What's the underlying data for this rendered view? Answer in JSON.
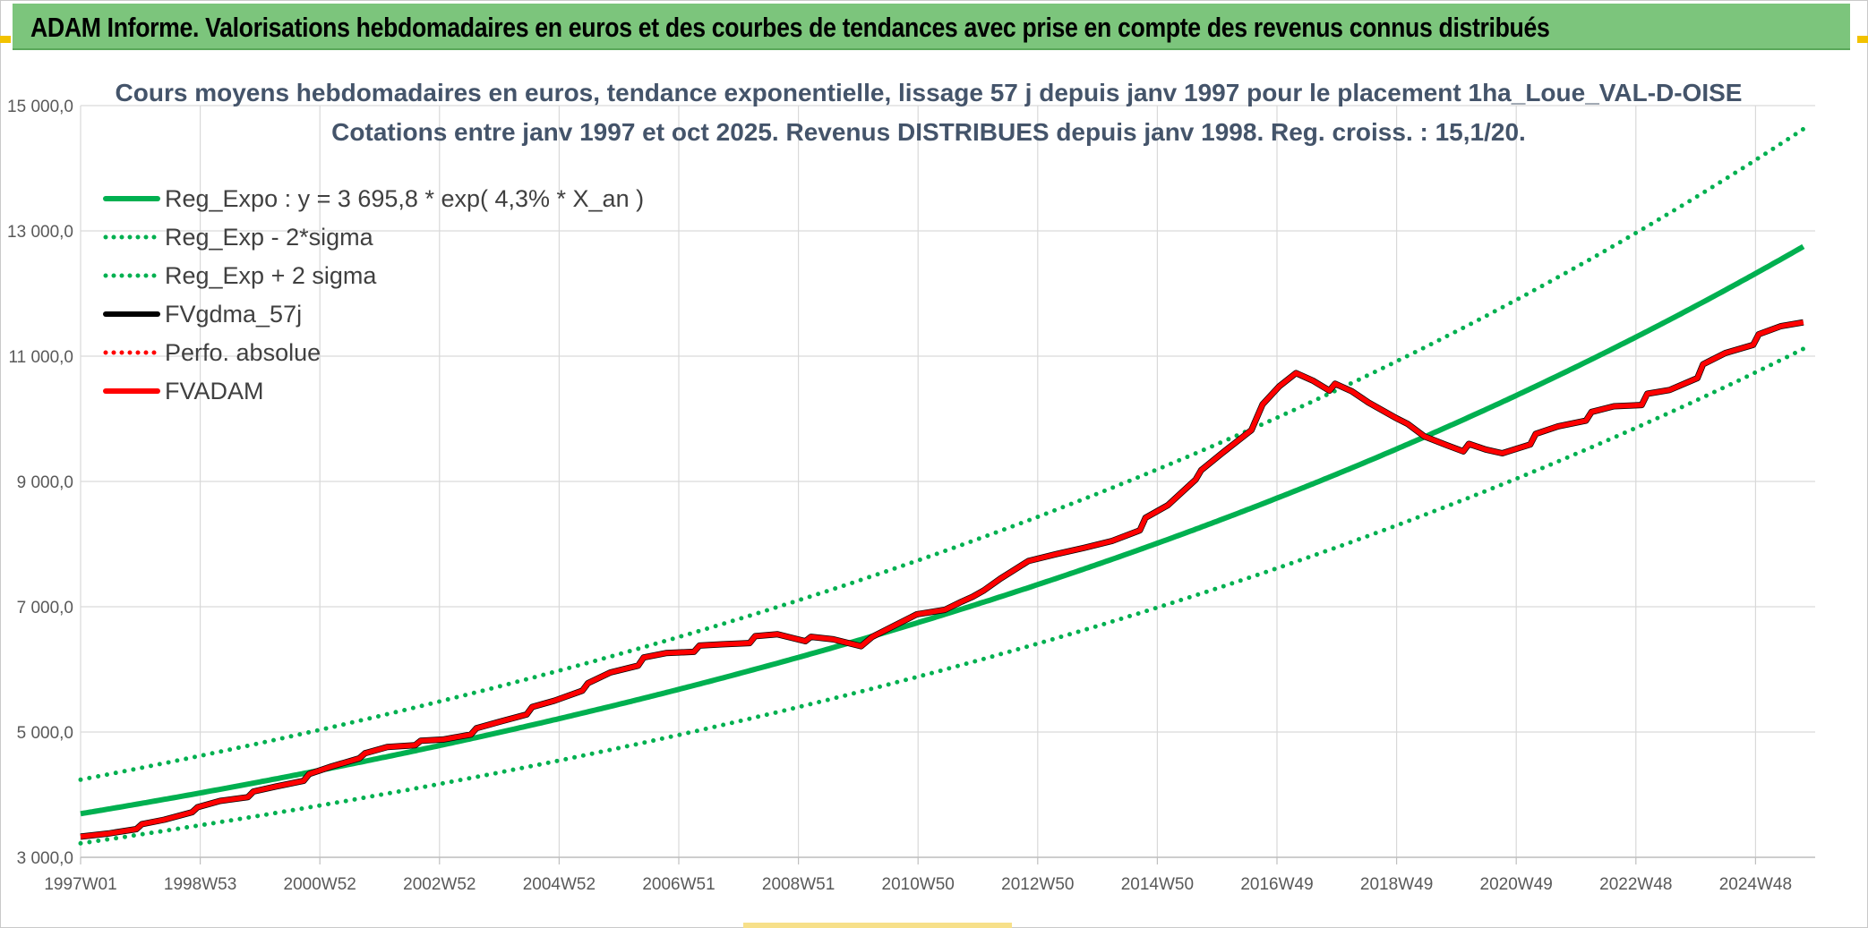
{
  "header": {
    "text": "ADAM Informe. Valorisations hebdomadaires en euros et des courbes de tendances avec prise en compte des revenus connus distribués"
  },
  "colors": {
    "header_bg": "#7cc57c",
    "reg_green": "#00b050",
    "fv_red": "#ff0000",
    "fv_black": "#000000",
    "grid": "#d9d9d9",
    "title": "#44546a"
  },
  "chart_data": {
    "type": "line",
    "title": "Cours moyens hebdomadaires en euros, tendance exponentielle, lissage 57 j depuis janv 1997 pour le placement 1ha_Loue_VAL-D-OISE",
    "subtitle": "Cotations entre janv 1997 et oct 2025. Revenus DISTRIBUES depuis janv 1998. Reg. croiss. : 15,1/20.",
    "xlabel": "",
    "ylabel": "",
    "ylim": [
      3000,
      15000
    ],
    "yticks": [
      "15 000,0",
      "13 000,0",
      "11 000,0",
      "9 000,0",
      "7 000,0",
      "5 000,0",
      "3 000,0"
    ],
    "ytick_values": [
      15000,
      13000,
      11000,
      9000,
      7000,
      5000,
      3000
    ],
    "x_range_years": [
      1997.0,
      2025.8
    ],
    "x_ticks": [
      {
        "label": "1997W01",
        "year": 1997.0
      },
      {
        "label": "1998W53",
        "year": 1999.0
      },
      {
        "label": "2000W52",
        "year": 2001.0
      },
      {
        "label": "2002W52",
        "year": 2003.0
      },
      {
        "label": "2004W52",
        "year": 2005.0
      },
      {
        "label": "2006W51",
        "year": 2007.0
      },
      {
        "label": "2008W51",
        "year": 2009.0
      },
      {
        "label": "2010W50",
        "year": 2011.0
      },
      {
        "label": "2012W50",
        "year": 2013.0
      },
      {
        "label": "2014W50",
        "year": 2015.0
      },
      {
        "label": "2016W49",
        "year": 2017.0
      },
      {
        "label": "2018W49",
        "year": 2019.0
      },
      {
        "label": "2020W49",
        "year": 2021.0
      },
      {
        "label": "2022W48",
        "year": 2023.0
      },
      {
        "label": "2024W48",
        "year": 2025.0
      }
    ],
    "grid": true,
    "legend_position": "top-left",
    "regression": {
      "a": 3695.8,
      "rate": 0.043,
      "sigma_factor": 1.147
    },
    "series": [
      {
        "name": "Reg_Expo : y = 3 695,8 * exp( 4,3% *  X_an )",
        "style": "solid",
        "color": "#00b050",
        "kind": "reg"
      },
      {
        "name": "Reg_Exp - 2*sigma",
        "style": "dotted",
        "color": "#00b050",
        "kind": "reg_minus"
      },
      {
        "name": "Reg_Exp + 2 sigma",
        "style": "dotted",
        "color": "#00b050",
        "kind": "reg_plus"
      },
      {
        "name": "FVgdma_57j",
        "style": "solid",
        "color": "#000000",
        "kind": "fv_black"
      },
      {
        "name": "Perfo. absolue",
        "style": "dotted",
        "color": "#ff0000",
        "kind": "perfo"
      },
      {
        "name": "FVADAM",
        "style": "solid",
        "color": "#ff0000",
        "kind": "fv_red"
      }
    ],
    "fv_points": [
      [
        1997.0,
        3330
      ],
      [
        1997.5,
        3380
      ],
      [
        1998.0,
        3450
      ],
      [
        1998.1,
        3530
      ],
      [
        1998.5,
        3600
      ],
      [
        1999.0,
        3720
      ],
      [
        1999.1,
        3800
      ],
      [
        1999.5,
        3900
      ],
      [
        2000.0,
        3960
      ],
      [
        2000.1,
        4050
      ],
      [
        2000.5,
        4130
      ],
      [
        2001.0,
        4220
      ],
      [
        2001.1,
        4330
      ],
      [
        2001.5,
        4450
      ],
      [
        2002.0,
        4580
      ],
      [
        2002.1,
        4660
      ],
      [
        2002.5,
        4760
      ],
      [
        2003.0,
        4790
      ],
      [
        2003.1,
        4860
      ],
      [
        2003.5,
        4880
      ],
      [
        2004.0,
        4960
      ],
      [
        2004.1,
        5060
      ],
      [
        2004.5,
        5160
      ],
      [
        2005.0,
        5280
      ],
      [
        2005.1,
        5400
      ],
      [
        2005.5,
        5500
      ],
      [
        2006.0,
        5660
      ],
      [
        2006.1,
        5780
      ],
      [
        2006.5,
        5950
      ],
      [
        2007.0,
        6060
      ],
      [
        2007.1,
        6190
      ],
      [
        2007.5,
        6260
      ],
      [
        2008.0,
        6280
      ],
      [
        2008.1,
        6380
      ],
      [
        2008.5,
        6400
      ],
      [
        2009.0,
        6420
      ],
      [
        2009.1,
        6530
      ],
      [
        2009.5,
        6560
      ],
      [
        2010.0,
        6450
      ],
      [
        2010.1,
        6520
      ],
      [
        2010.5,
        6480
      ],
      [
        2011.0,
        6370
      ],
      [
        2011.2,
        6520
      ],
      [
        2011.6,
        6700
      ],
      [
        2012.0,
        6880
      ],
      [
        2012.5,
        6950
      ],
      [
        2012.8,
        7080
      ],
      [
        2013.0,
        7160
      ],
      [
        2013.2,
        7260
      ],
      [
        2013.5,
        7450
      ],
      [
        2014.0,
        7730
      ],
      [
        2014.5,
        7840
      ],
      [
        2015.0,
        7940
      ],
      [
        2015.5,
        8050
      ],
      [
        2016.0,
        8220
      ],
      [
        2016.1,
        8420
      ],
      [
        2016.5,
        8620
      ],
      [
        2017.0,
        9030
      ],
      [
        2017.1,
        9180
      ],
      [
        2017.5,
        9470
      ],
      [
        2018.0,
        9820
      ],
      [
        2018.2,
        10230
      ],
      [
        2018.5,
        10520
      ],
      [
        2018.8,
        10730
      ],
      [
        2019.1,
        10610
      ],
      [
        2019.4,
        10450
      ],
      [
        2019.5,
        10560
      ],
      [
        2019.8,
        10440
      ],
      [
        2020.1,
        10260
      ],
      [
        2020.6,
        10010
      ],
      [
        2020.8,
        9920
      ],
      [
        2021.1,
        9720
      ],
      [
        2021.5,
        9580
      ],
      [
        2021.8,
        9480
      ],
      [
        2021.9,
        9600
      ],
      [
        2022.2,
        9510
      ],
      [
        2022.5,
        9450
      ],
      [
        2023.0,
        9590
      ],
      [
        2023.1,
        9760
      ],
      [
        2023.5,
        9880
      ],
      [
        2024.0,
        9970
      ],
      [
        2024.1,
        10110
      ],
      [
        2024.5,
        10200
      ],
      [
        2025.0,
        10220
      ],
      [
        2025.1,
        10400
      ],
      [
        2025.5,
        10460
      ],
      [
        2026.0,
        10650
      ],
      [
        2026.1,
        10870
      ],
      [
        2026.5,
        11050
      ],
      [
        2027.0,
        11180
      ],
      [
        2027.1,
        11350
      ],
      [
        2027.5,
        11480
      ],
      [
        2027.9,
        11540
      ]
    ]
  }
}
